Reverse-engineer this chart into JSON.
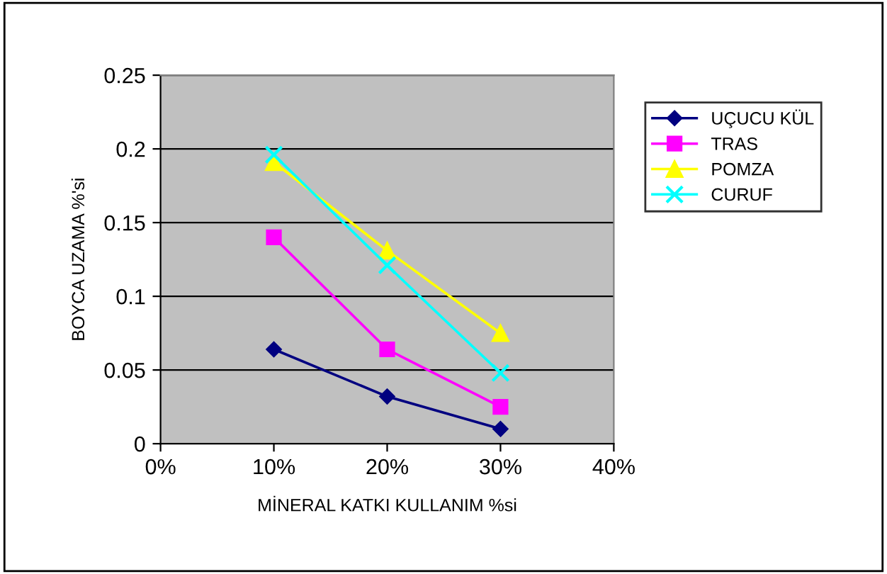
{
  "chart_data": {
    "type": "line",
    "xlabel": "MİNERAL KATKI KULLANIM %si",
    "ylabel": "BOYCA UZAMA %'si",
    "x": [
      0.1,
      0.2,
      0.3
    ],
    "series": [
      {
        "name": "UÇUCU KÜL",
        "color": "#000080",
        "marker": "diamond",
        "values": [
          0.064,
          0.032,
          0.01
        ]
      },
      {
        "name": "TRAS",
        "color": "#ff00ff",
        "marker": "square",
        "values": [
          0.14,
          0.064,
          0.025
        ]
      },
      {
        "name": "POMZA",
        "color": "#ffff00",
        "marker": "triangle",
        "values": [
          0.191,
          0.131,
          0.075
        ]
      },
      {
        "name": "CURUF",
        "color": "#00ffff",
        "marker": "cross",
        "values": [
          0.196,
          0.121,
          0.048
        ]
      }
    ],
    "xlim": [
      0,
      0.4
    ],
    "xticks": [
      {
        "value": 0,
        "label": "0%"
      },
      {
        "value": 0.1,
        "label": "10%"
      },
      {
        "value": 0.2,
        "label": "20%"
      },
      {
        "value": 0.3,
        "label": "30%"
      },
      {
        "value": 0.4,
        "label": "40%"
      }
    ],
    "ylim": [
      0,
      0.25
    ],
    "yticks": [
      0,
      0.05,
      0.1,
      0.15,
      0.2,
      0.25
    ],
    "grid": "y",
    "legend": "right"
  }
}
